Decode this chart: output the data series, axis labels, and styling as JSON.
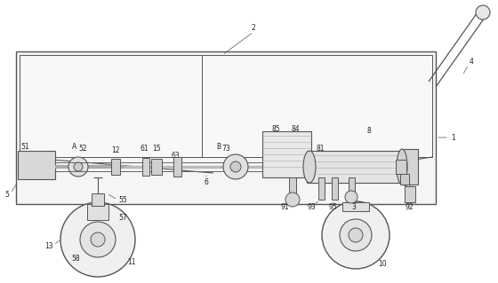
{
  "bg_color": "#ffffff",
  "lc": "#555555",
  "lc_dark": "#333333",
  "fill_box": "#f0f0f0",
  "fill_inner": "#e8e8e8",
  "fill_dark": "#cccccc",
  "figsize": [
    5.6,
    3.19
  ],
  "dpi": 100
}
